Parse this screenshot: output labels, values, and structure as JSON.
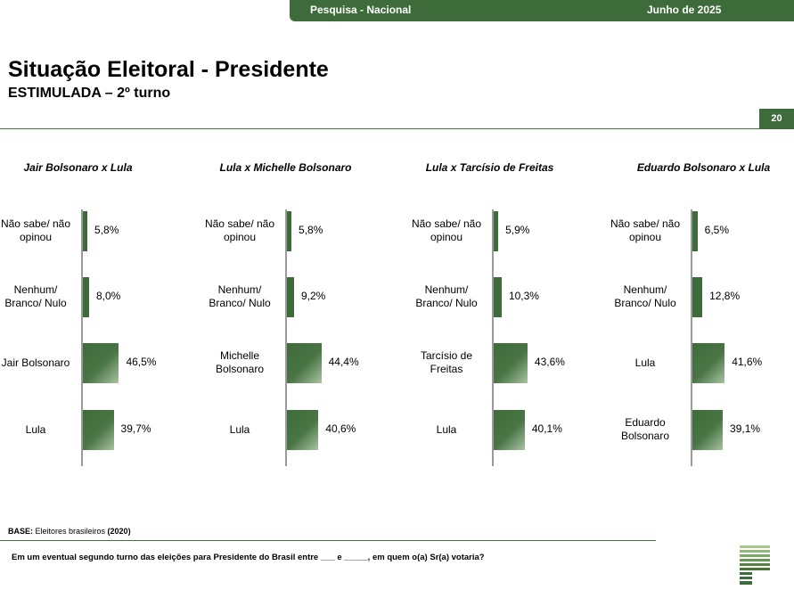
{
  "header": {
    "left": "Pesquisa - Nacional",
    "right": "Junho de 2025",
    "page_number": "20"
  },
  "title": "Situação Eleitoral - Presidente",
  "subtitle": "ESTIMULADA – 2º turno",
  "colors": {
    "brand_green": "#3e6b3a",
    "bar_light": "#a9c2a3"
  },
  "chart_data": [
    {
      "type": "bar",
      "orientation": "horizontal",
      "title": "Jair Bolsonaro x Lula",
      "categories": [
        "Não sabe/ não\nopinou",
        "Nenhum/\nBranco/ Nulo",
        "Jair Bolsonaro",
        "Lula"
      ],
      "values": [
        5.8,
        8.0,
        46.5,
        39.7
      ],
      "labels": [
        "5,8%",
        "8,0%",
        "46,5%",
        "39,7%"
      ]
    },
    {
      "type": "bar",
      "orientation": "horizontal",
      "title": "Lula x Michelle Bolsonaro",
      "categories": [
        "Não sabe/ não\nopinou",
        "Nenhum/\nBranco/ Nulo",
        "Michelle\nBolsonaro",
        "Lula"
      ],
      "values": [
        5.8,
        9.2,
        44.4,
        40.6
      ],
      "labels": [
        "5,8%",
        "9,2%",
        "44,4%",
        "40,6%"
      ]
    },
    {
      "type": "bar",
      "orientation": "horizontal",
      "title": "Lula x Tarcísio de Freitas",
      "categories": [
        "Não sabe/ não\nopinou",
        "Nenhum/\nBranco/ Nulo",
        "Tarcísio de\nFreitas",
        "Lula"
      ],
      "values": [
        5.9,
        10.3,
        43.6,
        40.1
      ],
      "labels": [
        "5,9%",
        "10,3%",
        "43,6%",
        "40,1%"
      ]
    },
    {
      "type": "bar",
      "orientation": "horizontal",
      "title": "Eduardo Bolsonaro x Lula",
      "categories": [
        "Não sabe/ não\nopinou",
        "Nenhum/\nBranco/ Nulo",
        "Lula",
        "Eduardo\nBolsonaro"
      ],
      "values": [
        6.5,
        12.8,
        41.6,
        39.1
      ],
      "labels": [
        "6,5%",
        "12,8%",
        "41,6%",
        "39,1%"
      ]
    }
  ],
  "footer": {
    "base_label": "BASE:",
    "base_text": " Eleitores brasileiros ",
    "base_count": "(2020)",
    "question": "Em um eventual segundo turno das eleições para Presidente do Brasil entre ___ e _____, em quem o(a) Sr(a) votaria?"
  }
}
